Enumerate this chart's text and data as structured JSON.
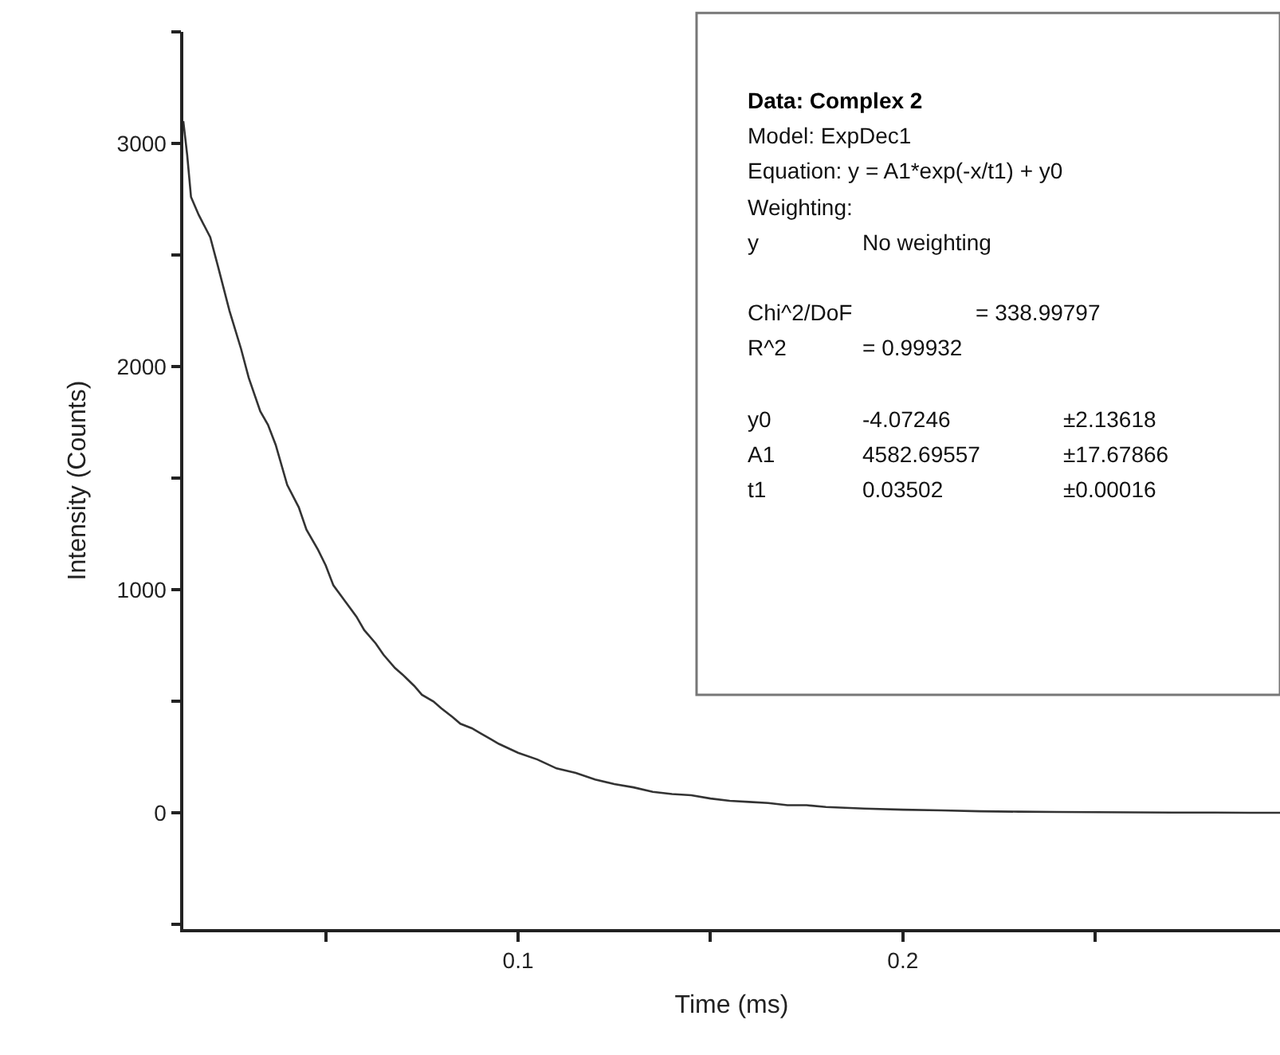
{
  "chart_data": {
    "type": "line",
    "xlabel": "Time (ms)",
    "ylabel": "Intensity (Counts)",
    "xlim": [
      0.013,
      0.298
    ],
    "ylim": [
      -520,
      3500
    ],
    "xticks": [
      {
        "value": 0.05,
        "label": null
      },
      0.1,
      {
        "value": 0.15,
        "label": null
      },
      0.2,
      {
        "value": 0.25,
        "label": null
      }
    ],
    "yticks": [
      {
        "value": -500,
        "label": null
      },
      0,
      {
        "value": 500,
        "label": null
      },
      1000,
      {
        "value": 1500,
        "label": null
      },
      2000,
      {
        "value": 2500,
        "label": null
      },
      3000,
      {
        "value": 3500,
        "label": null
      }
    ],
    "marker": "none",
    "line_style": "solid",
    "series": [
      {
        "color": "#333333",
        "x": [
          0.013,
          0.014,
          0.015,
          0.017,
          0.02,
          0.022,
          0.025,
          0.028,
          0.03,
          0.033,
          0.035,
          0.037,
          0.04,
          0.043,
          0.045,
          0.048,
          0.05,
          0.052,
          0.055,
          0.058,
          0.06,
          0.063,
          0.065,
          0.068,
          0.07,
          0.073,
          0.075,
          0.078,
          0.08,
          0.083,
          0.085,
          0.088,
          0.09,
          0.093,
          0.095,
          0.1,
          0.105,
          0.11,
          0.115,
          0.12,
          0.125,
          0.13,
          0.135,
          0.14,
          0.145,
          0.15,
          0.155,
          0.16,
          0.165,
          0.17,
          0.175,
          0.18,
          0.19,
          0.2,
          0.21,
          0.22,
          0.23,
          0.24,
          0.25,
          0.26,
          0.27,
          0.28,
          0.29,
          0.298
        ],
        "values": [
          3100,
          2950,
          2760,
          2680,
          2580,
          2450,
          2250,
          2080,
          1950,
          1800,
          1740,
          1650,
          1470,
          1370,
          1270,
          1180,
          1110,
          1020,
          950,
          880,
          820,
          760,
          710,
          650,
          620,
          570,
          530,
          500,
          470,
          430,
          400,
          380,
          360,
          330,
          310,
          270,
          240,
          200,
          180,
          150,
          130,
          115,
          95,
          85,
          80,
          65,
          55,
          50,
          45,
          35,
          35,
          27,
          20,
          15,
          12,
          8,
          6,
          5,
          4,
          3,
          2,
          2,
          1,
          1
        ]
      }
    ],
    "annotations": [
      "Data: Complex 2",
      "Model: ExpDec1",
      "Equation: y = A1*exp(-x/t1) + y0",
      "Weighting:",
      "y",
      "No weighting",
      "Chi^2/DoF",
      "= 338.99797",
      "R^2",
      "= 0.99932",
      "y0",
      "-4.07246",
      "±2.13618",
      "A1",
      "4582.69557",
      "±17.67866",
      "t1",
      "0.03502",
      "±0.00016"
    ]
  }
}
